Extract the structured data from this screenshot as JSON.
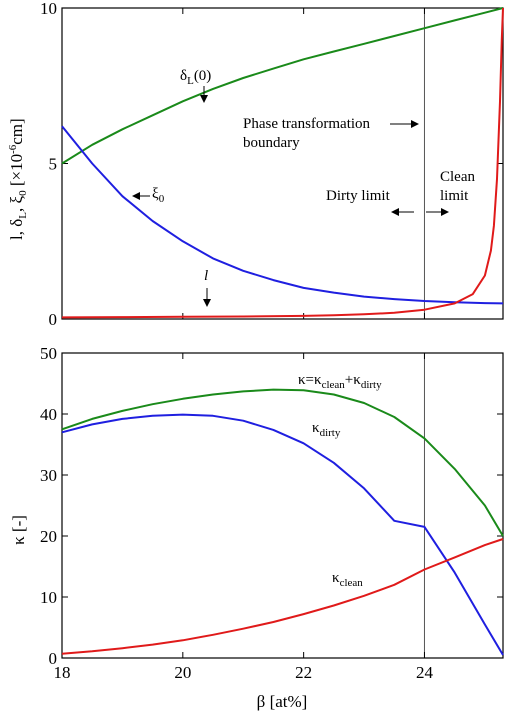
{
  "chart_data": [
    {
      "type": "line",
      "xlim": [
        18,
        25.3
      ],
      "ylim": [
        0,
        10
      ],
      "yticks": [
        "0",
        "5",
        "10"
      ],
      "ylabel_parts": {
        "l": "l",
        "deltaL": "δ",
        "deltaL_sub": "L",
        "xi": "ξ",
        "xi_sub": "0",
        "unit_pre": "[×10",
        "unit_exp": "-6",
        "unit_post": "cm]"
      },
      "series": [
        {
          "color": "#1a8a1a",
          "x": [
            18,
            18.5,
            19,
            19.5,
            20,
            20.5,
            21,
            21.5,
            22,
            22.5,
            23,
            23.5,
            24,
            24.5,
            25,
            25.3
          ],
          "y": [
            5.0,
            5.6,
            6.1,
            6.55,
            7.0,
            7.4,
            7.75,
            8.05,
            8.35,
            8.6,
            8.85,
            9.1,
            9.35,
            9.6,
            9.85,
            10.0
          ]
        },
        {
          "color": "#1f1fe0",
          "x": [
            18,
            18.5,
            19,
            19.5,
            20,
            20.5,
            21,
            21.5,
            22,
            22.5,
            23,
            23.5,
            24,
            24.5,
            25,
            25.3
          ],
          "y": [
            6.2,
            5.0,
            3.95,
            3.15,
            2.5,
            1.95,
            1.55,
            1.25,
            1.0,
            0.85,
            0.72,
            0.64,
            0.58,
            0.54,
            0.51,
            0.5
          ]
        },
        {
          "color": "#e01a1a",
          "x": [
            18,
            19,
            20,
            21,
            22,
            22.5,
            23,
            23.5,
            24,
            24.5,
            24.8,
            25.0,
            25.1,
            25.15,
            25.2,
            25.25,
            25.28,
            25.3
          ],
          "y": [
            0.05,
            0.06,
            0.07,
            0.08,
            0.1,
            0.12,
            0.15,
            0.2,
            0.3,
            0.5,
            0.8,
            1.4,
            2.2,
            3.0,
            4.5,
            7.0,
            9.0,
            10.2
          ]
        }
      ],
      "vline_x": 24,
      "annotations": {
        "deltaL_label": "δ",
        "deltaL_sub": "L",
        "deltaL_tail": "(0)",
        "xi_label": "ξ",
        "xi_sub": "0",
        "l_label": "l",
        "phase_line1": "Phase transformation",
        "phase_line2": "boundary",
        "dirty": "Dirty limit",
        "clean1": "Clean",
        "clean2": "limit"
      }
    },
    {
      "type": "line",
      "xlim": [
        18,
        25.3
      ],
      "ylim": [
        0,
        50
      ],
      "xticks": [
        "18",
        "20",
        "22",
        "24"
      ],
      "yticks": [
        "0",
        "10",
        "20",
        "30",
        "40",
        "50"
      ],
      "xlabel": "β [at%]",
      "ylabel": "κ [-]",
      "series": [
        {
          "color": "#1a8a1a",
          "x": [
            18,
            18.5,
            19,
            19.5,
            20,
            20.5,
            21,
            21.5,
            22,
            22.5,
            23,
            23.5,
            24,
            24.5,
            25,
            25.3
          ],
          "y": [
            37.5,
            39.2,
            40.5,
            41.6,
            42.5,
            43.2,
            43.7,
            44.0,
            43.9,
            43.2,
            41.8,
            39.5,
            36.0,
            31.0,
            25.0,
            20.0
          ]
        },
        {
          "color": "#1f1fe0",
          "x": [
            18,
            18.5,
            19,
            19.5,
            20,
            20.5,
            21,
            21.5,
            22,
            22.5,
            23,
            23.5,
            24,
            24.5,
            25,
            25.3
          ],
          "y": [
            37.0,
            38.3,
            39.2,
            39.7,
            39.9,
            39.7,
            38.9,
            37.4,
            35.2,
            32.0,
            27.8,
            22.5,
            21.5,
            14.0,
            5.5,
            0.5
          ]
        },
        {
          "color": "#e01a1a",
          "x": [
            18,
            18.5,
            19,
            19.5,
            20,
            20.5,
            21,
            21.5,
            22,
            22.5,
            23,
            23.5,
            24,
            24.5,
            25,
            25.3
          ],
          "y": [
            0.7,
            1.1,
            1.6,
            2.2,
            2.9,
            3.8,
            4.8,
            5.9,
            7.2,
            8.6,
            10.2,
            12.0,
            14.5,
            16.5,
            18.5,
            19.5
          ]
        }
      ],
      "vline_x": 24,
      "annotations": {
        "total_k": "κ=κ",
        "total_sub1": "clean",
        "total_plus": "+κ",
        "total_sub2": "dirty",
        "dirty_k": "κ",
        "dirty_sub": "dirty",
        "clean_k": "κ",
        "clean_sub": "clean"
      }
    }
  ]
}
